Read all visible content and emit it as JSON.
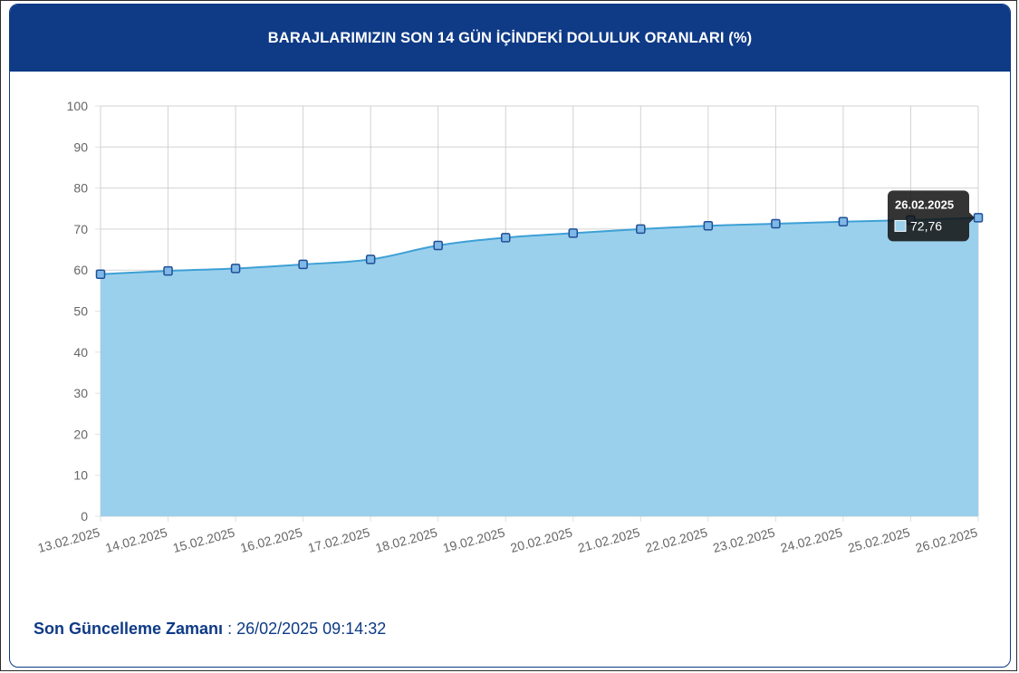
{
  "header": {
    "title": "BARAJLARIMIZIN SON 14 GÜN İÇİNDEKİ DOLULUK ORANLARI (%)"
  },
  "colors": {
    "brand": "#0e3a86",
    "fill": "#9bd0ec",
    "line": "#3da0d6",
    "marker": "#2f6ab3"
  },
  "chart_data": {
    "type": "area",
    "categories": [
      "13.02.2025",
      "14.02.2025",
      "15.02.2025",
      "16.02.2025",
      "17.02.2025",
      "18.02.2025",
      "19.02.2025",
      "20.02.2025",
      "21.02.2025",
      "22.02.2025",
      "23.02.2025",
      "24.02.2025",
      "25.02.2025",
      "26.02.2025"
    ],
    "series": [
      {
        "values": [
          59.0,
          59.8,
          60.4,
          61.4,
          62.6,
          66.0,
          67.9,
          69.0,
          70.0,
          70.8,
          71.3,
          71.8,
          72.2,
          72.76
        ]
      }
    ],
    "ylim": [
      0,
      100
    ],
    "yticks": [
      0,
      10,
      20,
      30,
      40,
      50,
      60,
      70,
      80,
      90,
      100
    ],
    "grid": true,
    "tooltip": {
      "title": "26.02.2025",
      "value": "72,76"
    }
  },
  "footer": {
    "label": "Son Güncelleme Zamanı",
    "separator": " : ",
    "value": "26/02/2025 09:14:32"
  }
}
